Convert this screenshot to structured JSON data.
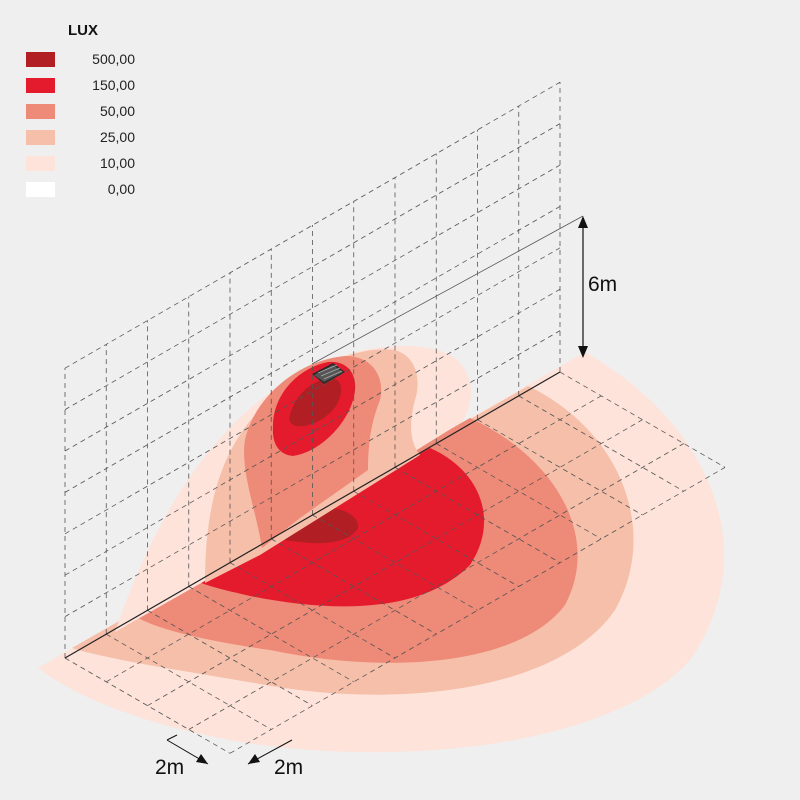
{
  "legend": {
    "title": "LUX",
    "items": [
      {
        "label": "500,00",
        "color": "#b11f24"
      },
      {
        "label": "150,00",
        "color": "#e41b2d"
      },
      {
        "label": "50,00",
        "color": "#ee8a78"
      },
      {
        "label": "25,00",
        "color": "#f6bfaa"
      },
      {
        "label": "10,00",
        "color": "#fde3da"
      },
      {
        "label": "0,00",
        "color": "#ffffff"
      }
    ]
  },
  "dimensions": {
    "height_label": "6m",
    "grid_x_label": "2m",
    "grid_y_label": "2m"
  },
  "fixture": {
    "icon": "floodlight-icon"
  }
}
